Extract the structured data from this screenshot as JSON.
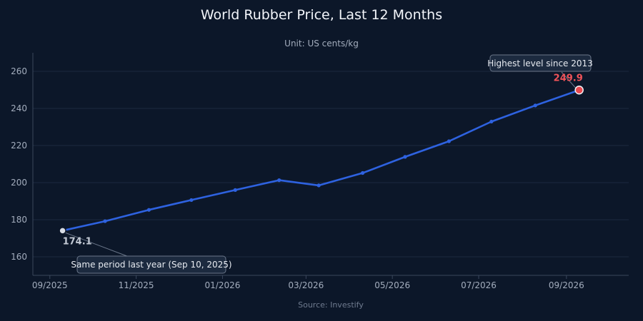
{
  "chart_data": {
    "type": "line",
    "title": "World Rubber Price, Last 12 Months",
    "subtitle": "Unit: US cents/kg",
    "source": "Source: Investify",
    "xlabel": "",
    "ylabel": "",
    "x_ticks": [
      "09/2025",
      "11/2025",
      "01/2026",
      "03/2026",
      "05/2026",
      "07/2026",
      "09/2026"
    ],
    "x_tick_dates": [
      "2025-09-01",
      "2025-11-01",
      "2026-01-01",
      "2026-03-01",
      "2026-05-01",
      "2026-07-01",
      "2026-09-01"
    ],
    "x_range": [
      "2025-08-20",
      "2026-10-15"
    ],
    "ylim": [
      150,
      270
    ],
    "y_ticks": [
      160,
      180,
      200,
      220,
      240,
      260
    ],
    "grid": true,
    "series": [
      {
        "name": "",
        "color": "#2e62e0",
        "points": [
          {
            "x": "2025-09-10",
            "y": 174.1
          },
          {
            "x": "2025-10-10",
            "y": 179.2
          },
          {
            "x": "2025-11-10",
            "y": 185.3
          },
          {
            "x": "2025-12-10",
            "y": 190.6
          },
          {
            "x": "2026-01-10",
            "y": 196.0
          },
          {
            "x": "2026-02-10",
            "y": 201.3
          },
          {
            "x": "2026-03-10",
            "y": 198.5
          },
          {
            "x": "2026-04-10",
            "y": 205.2
          },
          {
            "x": "2026-05-10",
            "y": 213.9
          },
          {
            "x": "2026-06-10",
            "y": 222.3
          },
          {
            "x": "2026-07-10",
            "y": 232.9
          },
          {
            "x": "2026-08-10",
            "y": 241.6
          },
          {
            "x": "2026-09-10",
            "y": 249.9
          }
        ]
      }
    ],
    "annotations": [
      {
        "text": "Same period last year (Sep 10, 2025)",
        "value_label": "174.1",
        "point_index": 0,
        "marker_color": "#d7dce4",
        "label_color": "#c2c9d4"
      },
      {
        "text": "Highest level since 2013",
        "value_label": "249.9",
        "point_index": 12,
        "marker_color": "#e8484f",
        "label_color": "#ef5359"
      }
    ]
  }
}
